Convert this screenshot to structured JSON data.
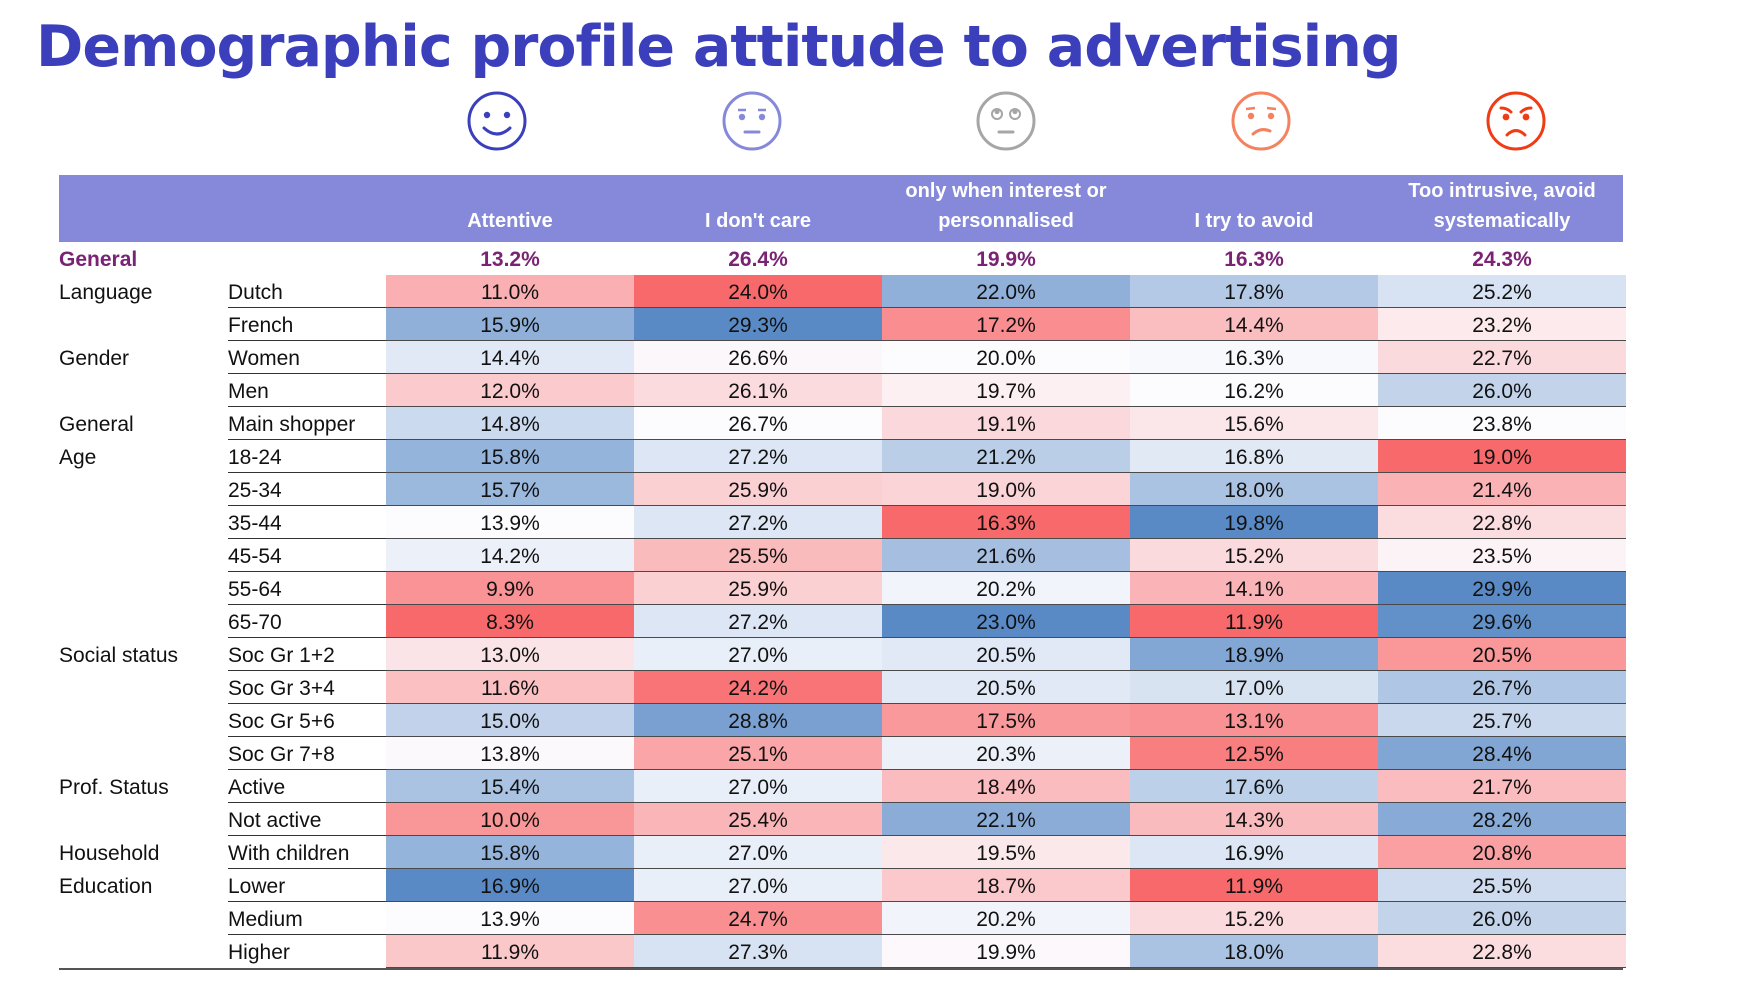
{
  "title": "Demographic profile attitude to advertising",
  "faces": [
    {
      "name": "happy-face-icon",
      "color": "#3b3fbc",
      "mood": "happy"
    },
    {
      "name": "indifferent-face-icon",
      "color": "#8689d9",
      "mood": "indifferent"
    },
    {
      "name": "eye-roll-face-icon",
      "color": "#a6a6a6",
      "mood": "eyeroll"
    },
    {
      "name": "worried-face-icon",
      "color": "#f5825e",
      "mood": "worried"
    },
    {
      "name": "angry-face-icon",
      "color": "#f03c14",
      "mood": "angry"
    }
  ],
  "colors": {
    "header_bg": "#8689d9",
    "general_text": "#7a2274",
    "title": "#3b3fbc",
    "scale_low": "#f8696b",
    "scale_mid": "#fcfcff",
    "scale_high": "#5a8ac6"
  },
  "chart_data": {
    "type": "heatmap",
    "title": "Demographic profile attitude to advertising",
    "columns": [
      "Attentive",
      "I don't care",
      "only when interest or personnalised",
      "I try to avoid",
      "Too intrusive, avoid systematically"
    ],
    "column_header_lines": [
      [
        "Attentive"
      ],
      [
        "I don't care"
      ],
      [
        "only when interest or",
        "personnalised"
      ],
      [
        "I try to avoid"
      ],
      [
        "Too intrusive, avoid",
        "systematically"
      ]
    ],
    "unit": "%",
    "general": {
      "label": "General",
      "values": [
        13.2,
        26.4,
        19.9,
        16.3,
        24.3
      ]
    },
    "rows": [
      {
        "group": "Language",
        "label": "Dutch",
        "values": [
          11.0,
          24.0,
          22.0,
          17.8,
          25.2
        ]
      },
      {
        "group": "",
        "label": "French",
        "values": [
          15.9,
          29.3,
          17.2,
          14.4,
          23.2
        ]
      },
      {
        "group": "Gender",
        "label": "Women",
        "values": [
          14.4,
          26.6,
          20.0,
          16.3,
          22.7
        ]
      },
      {
        "group": "",
        "label": "Men",
        "values": [
          12.0,
          26.1,
          19.7,
          16.2,
          26.0
        ]
      },
      {
        "group": "General",
        "label": "Main shopper",
        "values": [
          14.8,
          26.7,
          19.1,
          15.6,
          23.8
        ]
      },
      {
        "group": "Age",
        "label": "18-24",
        "values": [
          15.8,
          27.2,
          21.2,
          16.8,
          19.0
        ]
      },
      {
        "group": "",
        "label": "25-34",
        "values": [
          15.7,
          25.9,
          19.0,
          18.0,
          21.4
        ]
      },
      {
        "group": "",
        "label": "35-44",
        "values": [
          13.9,
          27.2,
          16.3,
          19.8,
          22.8
        ]
      },
      {
        "group": "",
        "label": "45-54",
        "values": [
          14.2,
          25.5,
          21.6,
          15.2,
          23.5
        ]
      },
      {
        "group": "",
        "label": "55-64",
        "values": [
          9.9,
          25.9,
          20.2,
          14.1,
          29.9
        ]
      },
      {
        "group": "",
        "label": "65-70",
        "values": [
          8.3,
          27.2,
          23.0,
          11.9,
          29.6
        ]
      },
      {
        "group": "Social status",
        "label": "Soc Gr 1+2",
        "values": [
          13.0,
          27.0,
          20.5,
          18.9,
          20.5
        ]
      },
      {
        "group": "",
        "label": "Soc Gr 3+4",
        "values": [
          11.6,
          24.2,
          20.5,
          17.0,
          26.7
        ]
      },
      {
        "group": "",
        "label": "Soc Gr 5+6",
        "values": [
          15.0,
          28.8,
          17.5,
          13.1,
          25.7
        ]
      },
      {
        "group": "",
        "label": "Soc Gr 7+8",
        "values": [
          13.8,
          25.1,
          20.3,
          12.5,
          28.4
        ]
      },
      {
        "group": "Prof. Status",
        "label": "Active",
        "values": [
          15.4,
          27.0,
          18.4,
          17.6,
          21.7
        ]
      },
      {
        "group": "",
        "label": "Not active",
        "values": [
          10.0,
          25.4,
          22.1,
          14.3,
          28.2
        ]
      },
      {
        "group": "Household",
        "label": "With children",
        "values": [
          15.8,
          27.0,
          19.5,
          16.9,
          20.8
        ]
      },
      {
        "group": "Education",
        "label": "Lower",
        "values": [
          16.9,
          27.0,
          18.7,
          11.9,
          25.5
        ]
      },
      {
        "group": "",
        "label": "Medium",
        "values": [
          13.9,
          24.7,
          20.2,
          15.2,
          26.0
        ]
      },
      {
        "group": "",
        "label": "Higher",
        "values": [
          11.9,
          27.3,
          19.9,
          18.0,
          22.8
        ]
      }
    ],
    "color_scale": "per-column 3-color: red (low) → white (mid) → blue (high)"
  }
}
